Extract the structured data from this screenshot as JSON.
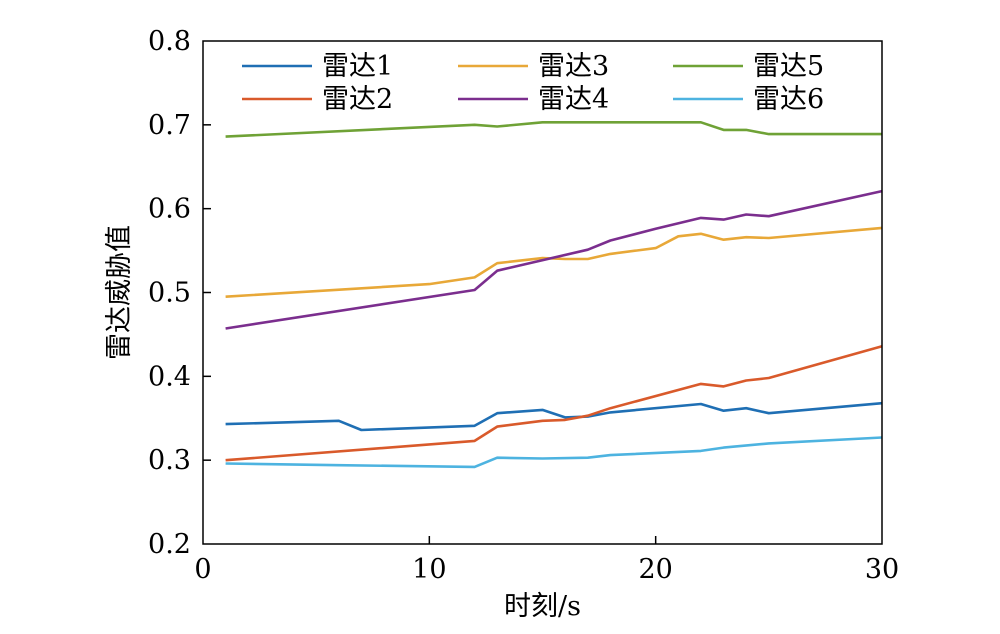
{
  "chart_data": {
    "type": "line",
    "title": "",
    "xlabel": "时刻/s",
    "ylabel": "雷达威胁值",
    "xlim": [
      0,
      30
    ],
    "ylim": [
      0.2,
      0.8
    ],
    "xticks": [
      0,
      10,
      20,
      30
    ],
    "xtick_labels": [
      "0",
      "10",
      "20",
      "30"
    ],
    "yticks": [
      0.2,
      0.3,
      0.4,
      0.5,
      0.6,
      0.7,
      0.8
    ],
    "ytick_labels": [
      "0.2",
      "0.3",
      "0.4",
      "0.5",
      "0.6",
      "0.7",
      "0.8"
    ],
    "grid": false,
    "legend": "top, 3 columns x 2 rows",
    "series": [
      {
        "name": "雷达1",
        "color": "#1F6FB4",
        "x": [
          1,
          6,
          7,
          12,
          13,
          15,
          16,
          17,
          18,
          22,
          23,
          24,
          25,
          30
        ],
        "y": [
          0.343,
          0.347,
          0.336,
          0.341,
          0.356,
          0.36,
          0.351,
          0.352,
          0.357,
          0.367,
          0.359,
          0.362,
          0.356,
          0.368
        ]
      },
      {
        "name": "雷达2",
        "color": "#D95A2B",
        "x": [
          1,
          12,
          13,
          15,
          16,
          17,
          18,
          22,
          23,
          24,
          25,
          30
        ],
        "y": [
          0.3,
          0.323,
          0.34,
          0.347,
          0.348,
          0.353,
          0.362,
          0.391,
          0.388,
          0.395,
          0.398,
          0.436
        ]
      },
      {
        "name": "雷达3",
        "color": "#E8A838",
        "x": [
          1,
          10,
          12,
          13,
          15,
          16,
          17,
          18,
          20,
          21,
          22,
          23,
          24,
          25,
          30
        ],
        "y": [
          0.495,
          0.51,
          0.518,
          0.535,
          0.541,
          0.54,
          0.54,
          0.546,
          0.553,
          0.567,
          0.57,
          0.563,
          0.566,
          0.565,
          0.577
        ]
      },
      {
        "name": "雷达4",
        "color": "#7B2E8E",
        "x": [
          1,
          12,
          13,
          17,
          18,
          20,
          22,
          23,
          24,
          25,
          30
        ],
        "y": [
          0.457,
          0.503,
          0.526,
          0.551,
          0.562,
          0.576,
          0.589,
          0.587,
          0.593,
          0.591,
          0.621
        ]
      },
      {
        "name": "雷达5",
        "color": "#6FA236",
        "x": [
          1,
          12,
          13,
          15,
          17,
          22,
          23,
          24,
          25,
          30
        ],
        "y": [
          0.686,
          0.7,
          0.698,
          0.703,
          0.703,
          0.703,
          0.694,
          0.694,
          0.689,
          0.689
        ]
      },
      {
        "name": "雷达6",
        "color": "#4DB3E0",
        "x": [
          1,
          6,
          12,
          13,
          15,
          17,
          18,
          22,
          23,
          25,
          30
        ],
        "y": [
          0.296,
          0.294,
          0.292,
          0.303,
          0.302,
          0.303,
          0.306,
          0.311,
          0.315,
          0.32,
          0.327
        ]
      }
    ]
  }
}
